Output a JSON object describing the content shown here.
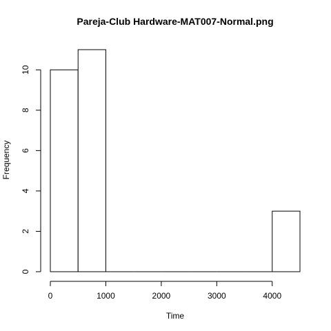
{
  "chart_data": {
    "type": "bar",
    "title": "Pareja-Club Hardware-MAT007-Normal.png",
    "xlabel": "Time",
    "ylabel": "Frequency",
    "bins": [
      {
        "start": 0,
        "end": 500,
        "count": 10
      },
      {
        "start": 500,
        "end": 1000,
        "count": 11
      },
      {
        "start": 1000,
        "end": 1500,
        "count": 0
      },
      {
        "start": 1500,
        "end": 2000,
        "count": 0
      },
      {
        "start": 2000,
        "end": 2500,
        "count": 0
      },
      {
        "start": 2500,
        "end": 3000,
        "count": 0
      },
      {
        "start": 3000,
        "end": 3500,
        "count": 0
      },
      {
        "start": 3500,
        "end": 4000,
        "count": 0
      },
      {
        "start": 4000,
        "end": 4500,
        "count": 3
      }
    ],
    "xlim": [
      0,
      4500
    ],
    "ylim": [
      0,
      11
    ],
    "x_ticks": [
      0,
      1000,
      2000,
      3000,
      4000
    ],
    "y_ticks": [
      0,
      2,
      4,
      6,
      8,
      10
    ],
    "grid": false,
    "legend": "none"
  }
}
